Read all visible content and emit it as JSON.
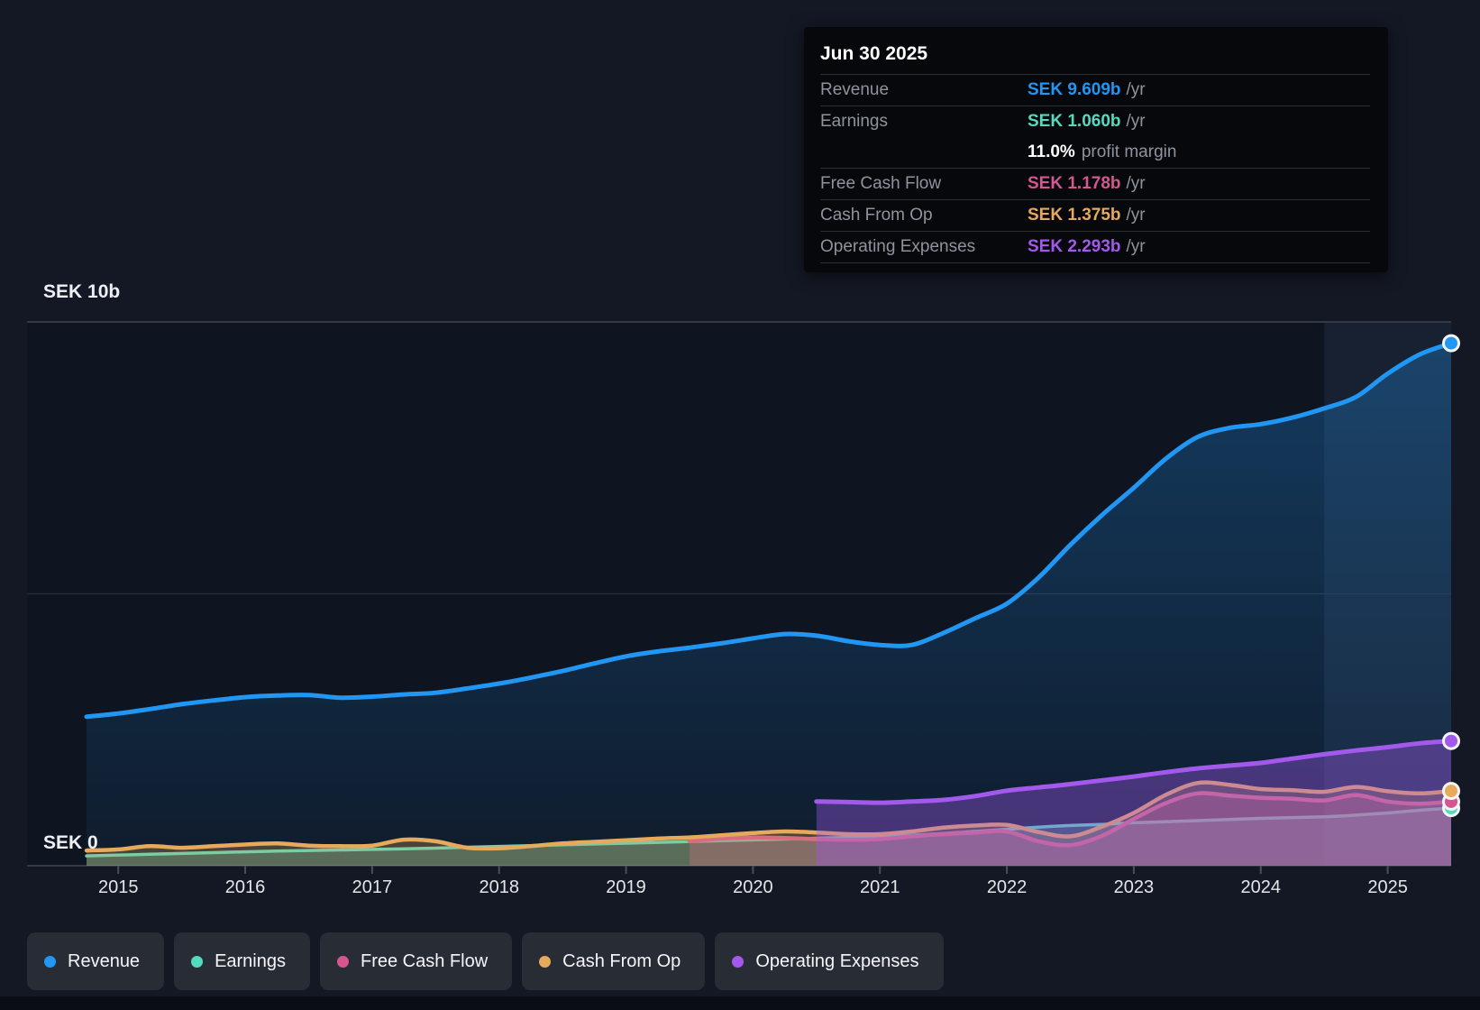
{
  "y_axis": {
    "top_label": "SEK 10b",
    "zero_label": "SEK 0"
  },
  "tooltip": {
    "date": "Jun 30 2025",
    "rows": [
      {
        "label": "Revenue",
        "value": "SEK 9.609b",
        "unit": "/yr",
        "color": "#2196f3"
      },
      {
        "label": "Earnings",
        "value": "SEK 1.060b",
        "unit": "/yr",
        "color": "#55d9bf",
        "sub_bold": "11.0%",
        "sub_text": "profit margin"
      },
      {
        "label": "Free Cash Flow",
        "value": "SEK 1.178b",
        "unit": "/yr",
        "color": "#d4578f"
      },
      {
        "label": "Cash From Op",
        "value": "SEK 1.375b",
        "unit": "/yr",
        "color": "#e7a95b"
      },
      {
        "label": "Operating Expenses",
        "value": "SEK 2.293b",
        "unit": "/yr",
        "color": "#a259ec"
      }
    ]
  },
  "legend": [
    {
      "label": "Revenue",
      "color": "#2196f3"
    },
    {
      "label": "Earnings",
      "color": "#55d9bf"
    },
    {
      "label": "Free Cash Flow",
      "color": "#d4578f"
    },
    {
      "label": "Cash From Op",
      "color": "#e7a95b"
    },
    {
      "label": "Operating Expenses",
      "color": "#a259ec"
    }
  ],
  "chart_data": {
    "type": "area",
    "title": "Financial history: revenue, earnings, cash flow and expenses (SEK billions)",
    "unit": "SEK billions per year",
    "ylim": [
      0,
      10
    ],
    "xlim": [
      2014.75,
      2025.5
    ],
    "x_ticks": [
      2015,
      2016,
      2017,
      2018,
      2019,
      2020,
      2021,
      2022,
      2023,
      2024,
      2025
    ],
    "grid_values": [
      0,
      5,
      10
    ],
    "highlight_band_x": [
      2024.5,
      2025.5
    ],
    "legend_position": "bottom",
    "series": [
      {
        "name": "Revenue",
        "color": "#2196f3",
        "line_width": 5,
        "fill_opacity": 0.0,
        "points": [
          [
            2014.75,
            2.74
          ],
          [
            2015.0,
            2.8
          ],
          [
            2015.25,
            2.88
          ],
          [
            2015.5,
            2.97
          ],
          [
            2015.75,
            3.04
          ],
          [
            2016.0,
            3.1
          ],
          [
            2016.25,
            3.13
          ],
          [
            2016.5,
            3.14
          ],
          [
            2016.75,
            3.09
          ],
          [
            2017.0,
            3.11
          ],
          [
            2017.25,
            3.15
          ],
          [
            2017.5,
            3.18
          ],
          [
            2017.75,
            3.26
          ],
          [
            2018.0,
            3.35
          ],
          [
            2018.25,
            3.46
          ],
          [
            2018.5,
            3.58
          ],
          [
            2018.75,
            3.72
          ],
          [
            2019.0,
            3.85
          ],
          [
            2019.25,
            3.94
          ],
          [
            2019.5,
            4.01
          ],
          [
            2019.75,
            4.09
          ],
          [
            2020.0,
            4.18
          ],
          [
            2020.25,
            4.26
          ],
          [
            2020.5,
            4.23
          ],
          [
            2020.75,
            4.13
          ],
          [
            2021.0,
            4.06
          ],
          [
            2021.25,
            4.06
          ],
          [
            2021.5,
            4.28
          ],
          [
            2021.75,
            4.55
          ],
          [
            2022.0,
            4.82
          ],
          [
            2022.25,
            5.3
          ],
          [
            2022.5,
            5.9
          ],
          [
            2022.75,
            6.45
          ],
          [
            2023.0,
            6.95
          ],
          [
            2023.25,
            7.48
          ],
          [
            2023.5,
            7.88
          ],
          [
            2023.75,
            8.05
          ],
          [
            2024.0,
            8.12
          ],
          [
            2024.25,
            8.24
          ],
          [
            2024.5,
            8.41
          ],
          [
            2024.75,
            8.62
          ],
          [
            2025.0,
            9.05
          ],
          [
            2025.25,
            9.4
          ],
          [
            2025.5,
            9.609
          ]
        ]
      },
      {
        "name": "Earnings",
        "color": "#55d9bf",
        "line_width": 3.5,
        "fill_opacity": 0.3,
        "points": [
          [
            2014.75,
            0.18
          ],
          [
            2015.25,
            0.21
          ],
          [
            2015.75,
            0.24
          ],
          [
            2016.25,
            0.27
          ],
          [
            2016.75,
            0.29
          ],
          [
            2017.25,
            0.31
          ],
          [
            2017.75,
            0.34
          ],
          [
            2018.25,
            0.37
          ],
          [
            2018.75,
            0.4
          ],
          [
            2019.25,
            0.43
          ],
          [
            2019.75,
            0.46
          ],
          [
            2020.25,
            0.49
          ],
          [
            2020.75,
            0.52
          ],
          [
            2021.25,
            0.56
          ],
          [
            2021.75,
            0.63
          ],
          [
            2022.0,
            0.67
          ],
          [
            2022.25,
            0.71
          ],
          [
            2022.5,
            0.74
          ],
          [
            2022.75,
            0.76
          ],
          [
            2023.0,
            0.79
          ],
          [
            2023.5,
            0.83
          ],
          [
            2024.0,
            0.87
          ],
          [
            2024.5,
            0.9
          ],
          [
            2024.75,
            0.93
          ],
          [
            2025.0,
            0.97
          ],
          [
            2025.25,
            1.02
          ],
          [
            2025.5,
            1.06
          ]
        ]
      },
      {
        "name": "Free Cash Flow",
        "color": "#d4578f",
        "line_width": 4.5,
        "fill_opacity": 0.33,
        "points": [
          [
            2019.5,
            0.45
          ],
          [
            2019.75,
            0.5
          ],
          [
            2020.0,
            0.52
          ],
          [
            2020.25,
            0.51
          ],
          [
            2020.5,
            0.49
          ],
          [
            2020.75,
            0.48
          ],
          [
            2021.0,
            0.49
          ],
          [
            2021.25,
            0.54
          ],
          [
            2021.5,
            0.58
          ],
          [
            2021.75,
            0.61
          ],
          [
            2022.0,
            0.63
          ],
          [
            2022.25,
            0.45
          ],
          [
            2022.5,
            0.38
          ],
          [
            2022.75,
            0.55
          ],
          [
            2023.0,
            0.86
          ],
          [
            2023.25,
            1.15
          ],
          [
            2023.5,
            1.33
          ],
          [
            2023.75,
            1.29
          ],
          [
            2024.0,
            1.25
          ],
          [
            2024.25,
            1.23
          ],
          [
            2024.5,
            1.2
          ],
          [
            2024.75,
            1.3
          ],
          [
            2025.0,
            1.18
          ],
          [
            2025.25,
            1.14
          ],
          [
            2025.5,
            1.178
          ]
        ]
      },
      {
        "name": "Cash From Op",
        "color": "#e7a95b",
        "line_width": 4.5,
        "fill_opacity": 0.28,
        "points": [
          [
            2014.75,
            0.28
          ],
          [
            2015.0,
            0.3
          ],
          [
            2015.25,
            0.36
          ],
          [
            2015.5,
            0.33
          ],
          [
            2015.75,
            0.36
          ],
          [
            2016.0,
            0.39
          ],
          [
            2016.25,
            0.41
          ],
          [
            2016.5,
            0.37
          ],
          [
            2016.75,
            0.36
          ],
          [
            2017.0,
            0.37
          ],
          [
            2017.25,
            0.48
          ],
          [
            2017.5,
            0.45
          ],
          [
            2017.75,
            0.33
          ],
          [
            2018.0,
            0.32
          ],
          [
            2018.25,
            0.36
          ],
          [
            2018.5,
            0.41
          ],
          [
            2018.75,
            0.44
          ],
          [
            2019.0,
            0.47
          ],
          [
            2019.25,
            0.5
          ],
          [
            2019.5,
            0.52
          ],
          [
            2019.75,
            0.56
          ],
          [
            2020.0,
            0.6
          ],
          [
            2020.25,
            0.63
          ],
          [
            2020.5,
            0.61
          ],
          [
            2020.75,
            0.58
          ],
          [
            2021.0,
            0.58
          ],
          [
            2021.25,
            0.63
          ],
          [
            2021.5,
            0.7
          ],
          [
            2021.75,
            0.74
          ],
          [
            2022.0,
            0.75
          ],
          [
            2022.25,
            0.62
          ],
          [
            2022.5,
            0.54
          ],
          [
            2022.75,
            0.72
          ],
          [
            2023.0,
            0.97
          ],
          [
            2023.25,
            1.3
          ],
          [
            2023.5,
            1.52
          ],
          [
            2023.75,
            1.49
          ],
          [
            2024.0,
            1.41
          ],
          [
            2024.25,
            1.39
          ],
          [
            2024.5,
            1.36
          ],
          [
            2024.75,
            1.45
          ],
          [
            2025.0,
            1.37
          ],
          [
            2025.25,
            1.33
          ],
          [
            2025.5,
            1.375
          ]
        ]
      },
      {
        "name": "Operating Expenses",
        "color": "#a259ec",
        "line_width": 5,
        "fill_opacity": 0.38,
        "points": [
          [
            2020.5,
            1.18
          ],
          [
            2020.75,
            1.17
          ],
          [
            2021.0,
            1.16
          ],
          [
            2021.25,
            1.18
          ],
          [
            2021.5,
            1.21
          ],
          [
            2021.75,
            1.28
          ],
          [
            2022.0,
            1.38
          ],
          [
            2022.25,
            1.44
          ],
          [
            2022.5,
            1.5
          ],
          [
            2022.75,
            1.57
          ],
          [
            2023.0,
            1.64
          ],
          [
            2023.25,
            1.72
          ],
          [
            2023.5,
            1.79
          ],
          [
            2023.75,
            1.84
          ],
          [
            2024.0,
            1.89
          ],
          [
            2024.25,
            1.97
          ],
          [
            2024.5,
            2.05
          ],
          [
            2024.75,
            2.12
          ],
          [
            2025.0,
            2.18
          ],
          [
            2025.25,
            2.25
          ],
          [
            2025.5,
            2.293
          ]
        ]
      }
    ]
  }
}
